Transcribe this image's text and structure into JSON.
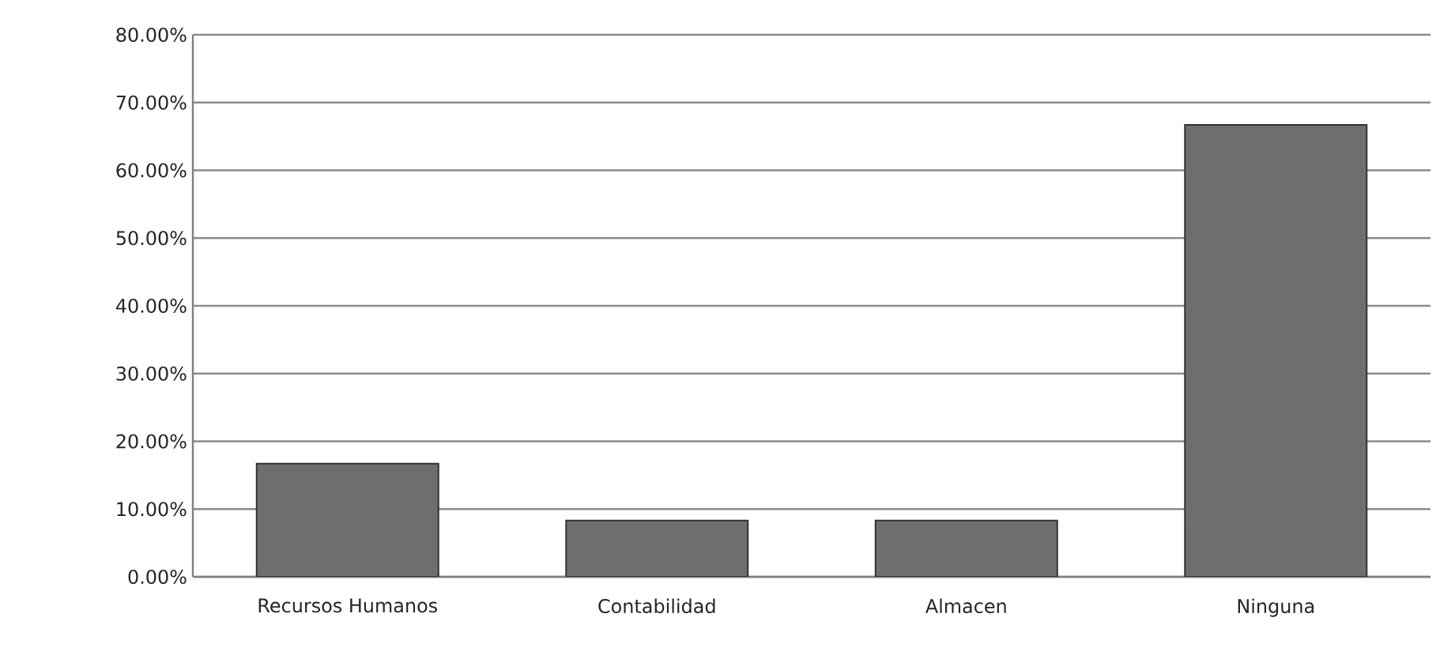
{
  "chart_data": {
    "type": "bar",
    "categories": [
      "Recursos Humanos",
      "Contabilidad",
      "Almacen",
      "Ninguna"
    ],
    "values": [
      16.7,
      8.3,
      8.3,
      66.7
    ],
    "color": "#6e6e6e",
    "ylim": [
      0,
      80
    ],
    "yticks": [
      {
        "value": 0,
        "label": "0.00%"
      },
      {
        "value": 10,
        "label": "10.00%"
      },
      {
        "value": 20,
        "label": "20.00%"
      },
      {
        "value": 30,
        "label": "30.00%"
      },
      {
        "value": 40,
        "label": "40.00%"
      },
      {
        "value": 50,
        "label": "50.00%"
      },
      {
        "value": 60,
        "label": "60.00%"
      },
      {
        "value": 70,
        "label": "70.00%"
      },
      {
        "value": 80,
        "label": "80.00%"
      }
    ],
    "grid": "y"
  }
}
